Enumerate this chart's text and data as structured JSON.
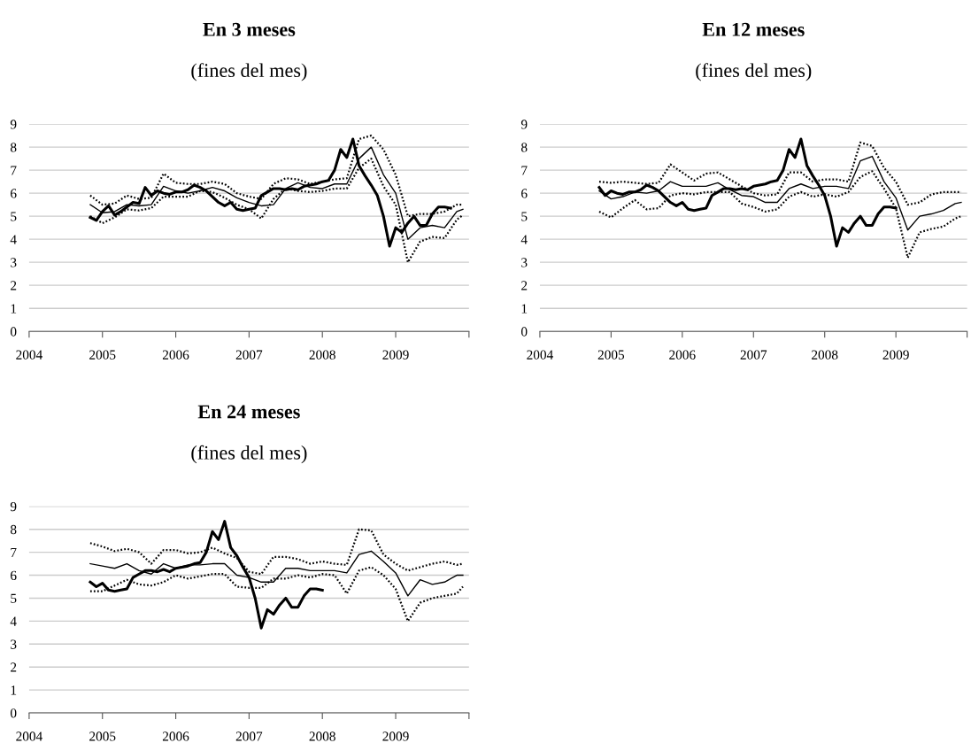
{
  "chart_data": [
    {
      "type": "line",
      "title": "En 3 meses",
      "subtitle": "(fines del mes)",
      "xlim": [
        "2004",
        "2010"
      ],
      "xticks": [
        "2004",
        "2005",
        "2006",
        "2007",
        "2008",
        "2009",
        {
          "value": "2010",
          "label": null
        }
      ],
      "ylim": [
        0,
        9
      ],
      "yticks": [
        0,
        1,
        2,
        3,
        4,
        5,
        6,
        7,
        8,
        9
      ],
      "grid": "y",
      "legend": false,
      "x": [
        "2004-11",
        "2005-01",
        "2005-03",
        "2005-05",
        "2005-07",
        "2005-09",
        "2005-11",
        "2006-01",
        "2006-03",
        "2006-05",
        "2006-07",
        "2006-09",
        "2006-11",
        "2007-01",
        "2007-03",
        "2007-05",
        "2007-07",
        "2007-09",
        "2007-11",
        "2008-01",
        "2008-03",
        "2008-05",
        "2008-07",
        "2008-09",
        "2008-11",
        "2009-01",
        "2009-03",
        "2009-05",
        "2009-07",
        "2009-09",
        "2009-11",
        "2009-12"
      ],
      "series": [
        {
          "color": "#000000",
          "line_style": "solid",
          "x": [
            "2004-11",
            "2004-12",
            "2005-01",
            "2005-02",
            "2005-03",
            "2005-04",
            "2005-05",
            "2005-06",
            "2005-07",
            "2005-08",
            "2005-09",
            "2005-10",
            "2005-11",
            "2005-12",
            "2006-01",
            "2006-02",
            "2006-03",
            "2006-04",
            "2006-05",
            "2006-06",
            "2006-07",
            "2006-08",
            "2006-09",
            "2006-10",
            "2006-11",
            "2006-12",
            "2007-01",
            "2007-02",
            "2007-03",
            "2007-04",
            "2007-05",
            "2007-06",
            "2007-07",
            "2007-08",
            "2007-09",
            "2007-10",
            "2007-11",
            "2007-12",
            "2008-01",
            "2008-02",
            "2008-03",
            "2008-04",
            "2008-05",
            "2008-06",
            "2008-07",
            "2008-08",
            "2008-09",
            "2008-10",
            "2008-11",
            "2008-12",
            "2009-01",
            "2009-02",
            "2009-03",
            "2009-04",
            "2009-05",
            "2009-06",
            "2009-07",
            "2009-08",
            "2009-09",
            "2009-10"
          ],
          "values": [
            4.95,
            4.82,
            5.2,
            5.45,
            5.05,
            5.2,
            5.4,
            5.6,
            5.55,
            6.25,
            5.9,
            6.1,
            6.0,
            5.95,
            6.05,
            6.05,
            6.15,
            6.35,
            6.25,
            6.1,
            5.85,
            5.6,
            5.45,
            5.6,
            5.3,
            5.25,
            5.3,
            5.35,
            5.9,
            6.05,
            6.2,
            6.2,
            6.15,
            6.2,
            6.15,
            6.3,
            6.35,
            6.4,
            6.5,
            6.55,
            7.0,
            7.9,
            7.55,
            8.35,
            7.2,
            6.75,
            6.35,
            5.9,
            5.0,
            3.7,
            4.5,
            4.3,
            4.7,
            5.0,
            4.6,
            4.6,
            5.1,
            5.4,
            5.4,
            5.35
          ]
        },
        {
          "color": "#000000",
          "line_style": "solid",
          "values": [
            5.5,
            5.15,
            5.2,
            5.5,
            5.45,
            5.5,
            6.3,
            6.1,
            6.0,
            6.1,
            6.25,
            6.1,
            5.8,
            5.6,
            5.45,
            5.5,
            6.2,
            6.45,
            6.25,
            6.2,
            6.4,
            6.4,
            7.5,
            8.0,
            6.8,
            6.0,
            4.0,
            4.5,
            4.6,
            4.5,
            5.2,
            5.3
          ]
        },
        {
          "color": "#000000",
          "line_style": "dotted",
          "values": [
            5.9,
            5.5,
            5.55,
            5.9,
            5.75,
            5.8,
            6.85,
            6.45,
            6.4,
            6.4,
            6.5,
            6.4,
            6.0,
            5.85,
            5.75,
            6.4,
            6.65,
            6.6,
            6.4,
            6.5,
            6.6,
            6.65,
            8.35,
            8.5,
            7.9,
            6.8,
            5.0,
            5.1,
            5.1,
            5.2,
            5.5,
            5.5
          ]
        },
        {
          "color": "#000000",
          "line_style": "dotted",
          "values": [
            5.0,
            4.7,
            4.95,
            5.3,
            5.25,
            5.35,
            5.85,
            5.85,
            5.85,
            6.1,
            6.05,
            5.8,
            5.5,
            5.3,
            4.9,
            5.75,
            6.2,
            6.1,
            6.05,
            6.1,
            6.2,
            6.2,
            7.1,
            7.5,
            6.3,
            5.5,
            3.0,
            3.9,
            4.1,
            4.05,
            4.85,
            5.05
          ]
        }
      ]
    },
    {
      "type": "line",
      "title": "En 12 meses",
      "subtitle": "(fines del mes)",
      "xlim": [
        "2004",
        "2010"
      ],
      "xticks": [
        "2004",
        "2005",
        "2006",
        "2007",
        "2008",
        "2009",
        {
          "value": "2010",
          "label": null
        }
      ],
      "ylim": [
        0,
        9
      ],
      "yticks": [
        0,
        1,
        2,
        3,
        4,
        5,
        6,
        7,
        8,
        9
      ],
      "grid": "y",
      "legend": false,
      "x": [
        "2004-11",
        "2005-01",
        "2005-03",
        "2005-05",
        "2005-07",
        "2005-09",
        "2005-11",
        "2006-01",
        "2006-03",
        "2006-05",
        "2006-07",
        "2006-09",
        "2006-11",
        "2007-01",
        "2007-03",
        "2007-05",
        "2007-07",
        "2007-09",
        "2007-11",
        "2008-01",
        "2008-03",
        "2008-05",
        "2008-07",
        "2008-09",
        "2008-11",
        "2009-01",
        "2009-03",
        "2009-05",
        "2009-07",
        "2009-09",
        "2009-11",
        "2009-12"
      ],
      "series": [
        {
          "color": "#000000",
          "line_style": "solid",
          "x": [
            "2004-11",
            "2004-12",
            "2005-01",
            "2005-02",
            "2005-03",
            "2005-04",
            "2005-05",
            "2005-06",
            "2005-07",
            "2005-08",
            "2005-09",
            "2005-10",
            "2005-11",
            "2005-12",
            "2006-01",
            "2006-02",
            "2006-03",
            "2006-04",
            "2006-05",
            "2006-06",
            "2006-07",
            "2006-08",
            "2006-09",
            "2006-10",
            "2006-11",
            "2006-12",
            "2007-01",
            "2007-02",
            "2007-03",
            "2007-04",
            "2007-05",
            "2007-06",
            "2007-07",
            "2007-08",
            "2007-09",
            "2007-10",
            "2007-11",
            "2007-12",
            "2008-01",
            "2008-02",
            "2008-03",
            "2008-04",
            "2008-05",
            "2008-06",
            "2008-07",
            "2008-08",
            "2008-09",
            "2008-10",
            "2008-11",
            "2008-12",
            "2009-01"
          ],
          "values": [
            6.25,
            5.9,
            6.1,
            6.0,
            5.95,
            6.05,
            6.05,
            6.15,
            6.35,
            6.25,
            6.1,
            5.85,
            5.6,
            5.45,
            5.6,
            5.3,
            5.25,
            5.3,
            5.35,
            5.9,
            6.05,
            6.2,
            6.2,
            6.15,
            6.2,
            6.15,
            6.3,
            6.35,
            6.4,
            6.5,
            6.55,
            7.0,
            7.9,
            7.55,
            8.35,
            7.2,
            6.75,
            6.35,
            5.9,
            5.0,
            3.7,
            4.5,
            4.3,
            4.7,
            5.0,
            4.6,
            4.6,
            5.1,
            5.4,
            5.4,
            5.35
          ]
        },
        {
          "color": "#000000",
          "line_style": "solid",
          "values": [
            6.1,
            5.75,
            5.85,
            6.05,
            6.0,
            6.1,
            6.5,
            6.3,
            6.3,
            6.3,
            6.45,
            6.15,
            5.9,
            5.85,
            5.6,
            5.6,
            6.2,
            6.4,
            6.2,
            6.3,
            6.3,
            6.2,
            7.4,
            7.6,
            6.5,
            5.8,
            4.4,
            5.0,
            5.1,
            5.25,
            5.55,
            5.6
          ]
        },
        {
          "color": "#000000",
          "line_style": "dotted",
          "values": [
            6.5,
            6.45,
            6.5,
            6.45,
            6.4,
            6.45,
            7.25,
            6.9,
            6.55,
            6.85,
            6.9,
            6.6,
            6.3,
            6.0,
            5.9,
            5.95,
            6.9,
            6.9,
            6.5,
            6.6,
            6.6,
            6.5,
            8.2,
            8.05,
            7.1,
            6.5,
            5.5,
            5.6,
            5.95,
            6.05,
            6.05,
            6.05
          ]
        },
        {
          "color": "#000000",
          "line_style": "dotted",
          "values": [
            5.2,
            4.95,
            5.35,
            5.7,
            5.3,
            5.35,
            5.9,
            6.0,
            5.95,
            6.05,
            6.05,
            6.05,
            5.55,
            5.4,
            5.2,
            5.3,
            5.85,
            6.05,
            5.85,
            5.95,
            5.85,
            6.05,
            6.7,
            6.95,
            6.2,
            5.35,
            3.2,
            4.3,
            4.45,
            4.55,
            4.9,
            5.0
          ]
        }
      ]
    },
    {
      "type": "line",
      "title": "En 24 meses",
      "subtitle": "(fines del mes)",
      "xlim": [
        "2004",
        "2010"
      ],
      "xticks": [
        "2004",
        "2005",
        "2006",
        "2007",
        "2008",
        "2009",
        {
          "value": "2010",
          "label": null
        }
      ],
      "ylim": [
        0,
        9
      ],
      "yticks": [
        0,
        1,
        2,
        3,
        4,
        5,
        6,
        7,
        8,
        9
      ],
      "grid": "y",
      "legend": false,
      "x": [
        "2004-11",
        "2005-01",
        "2005-03",
        "2005-05",
        "2005-07",
        "2005-09",
        "2005-11",
        "2006-01",
        "2006-03",
        "2006-05",
        "2006-07",
        "2006-09",
        "2006-11",
        "2007-01",
        "2007-03",
        "2007-05",
        "2007-07",
        "2007-09",
        "2007-11",
        "2008-01",
        "2008-03",
        "2008-05",
        "2008-07",
        "2008-09",
        "2008-11",
        "2009-01",
        "2009-03",
        "2009-05",
        "2009-07",
        "2009-09",
        "2009-11",
        "2009-12"
      ],
      "series": [
        {
          "color": "#000000",
          "line_style": "solid",
          "x": [
            "2004-11",
            "2004-12",
            "2005-01",
            "2005-02",
            "2005-03",
            "2005-04",
            "2005-05",
            "2005-06",
            "2005-07",
            "2005-08",
            "2005-09",
            "2005-10",
            "2005-11",
            "2005-12",
            "2006-01",
            "2006-02",
            "2006-03",
            "2006-04",
            "2006-05",
            "2006-06",
            "2006-07",
            "2006-08",
            "2006-09",
            "2006-10",
            "2006-11",
            "2006-12",
            "2007-01",
            "2007-02",
            "2007-03",
            "2007-04",
            "2007-05",
            "2007-06",
            "2007-07",
            "2007-08",
            "2007-09",
            "2007-10",
            "2007-11",
            "2007-12",
            "2008-01"
          ],
          "values": [
            5.7,
            5.5,
            5.65,
            5.35,
            5.3,
            5.35,
            5.4,
            5.9,
            6.05,
            6.2,
            6.2,
            6.15,
            6.25,
            6.15,
            6.3,
            6.35,
            6.4,
            6.5,
            6.55,
            7.0,
            7.9,
            7.55,
            8.35,
            7.2,
            6.85,
            6.35,
            5.9,
            5.0,
            3.7,
            4.5,
            4.3,
            4.7,
            5.0,
            4.6,
            4.6,
            5.1,
            5.4,
            5.4,
            5.35
          ]
        },
        {
          "color": "#000000",
          "line_style": "solid",
          "values": [
            6.5,
            6.4,
            6.3,
            6.5,
            6.2,
            6.05,
            6.5,
            6.3,
            6.45,
            6.45,
            6.5,
            6.5,
            6.0,
            5.9,
            5.7,
            5.7,
            6.3,
            6.3,
            6.2,
            6.2,
            6.2,
            6.1,
            6.9,
            7.05,
            6.6,
            6.1,
            5.1,
            5.8,
            5.6,
            5.7,
            6.0,
            6.0
          ]
        },
        {
          "color": "#000000",
          "line_style": "dotted",
          "values": [
            7.4,
            7.25,
            7.05,
            7.15,
            7.0,
            6.5,
            7.1,
            7.1,
            6.95,
            7.0,
            7.2,
            6.95,
            6.75,
            6.15,
            6.05,
            6.8,
            6.8,
            6.7,
            6.5,
            6.6,
            6.5,
            6.45,
            8.0,
            7.95,
            6.9,
            6.5,
            6.2,
            6.35,
            6.5,
            6.6,
            6.45,
            6.5
          ]
        },
        {
          "color": "#000000",
          "line_style": "dotted",
          "values": [
            5.3,
            5.3,
            5.55,
            5.8,
            5.6,
            5.55,
            5.7,
            6.0,
            5.85,
            5.95,
            6.05,
            6.05,
            5.5,
            5.45,
            5.45,
            5.85,
            5.85,
            6.0,
            5.9,
            6.05,
            6.0,
            5.2,
            6.2,
            6.35,
            6.0,
            5.4,
            4.0,
            4.8,
            5.0,
            5.1,
            5.2,
            5.5
          ]
        }
      ]
    }
  ]
}
